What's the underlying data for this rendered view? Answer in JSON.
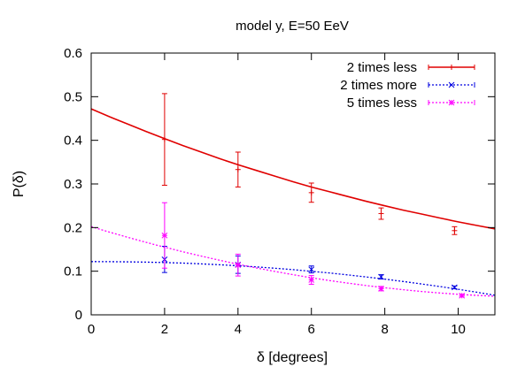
{
  "chart_data": {
    "type": "line",
    "title": "model y, E=50 EeV",
    "xlabel": "δ [degrees]",
    "ylabel": "P(δ)",
    "xlim": [
      0,
      11
    ],
    "ylim": [
      0,
      0.6
    ],
    "x_ticks": [
      {
        "value": 0,
        "label": "0"
      },
      {
        "value": 2,
        "label": "2"
      },
      {
        "value": 4,
        "label": "4"
      },
      {
        "value": 6,
        "label": "6"
      },
      {
        "value": 8,
        "label": "8"
      },
      {
        "value": 10,
        "label": "10"
      }
    ],
    "y_ticks": [
      {
        "value": 0,
        "label": "0"
      },
      {
        "value": 0.1,
        "label": "0.1"
      },
      {
        "value": 0.2,
        "label": "0.2"
      },
      {
        "value": 0.3,
        "label": "0.3"
      },
      {
        "value": 0.4,
        "label": "0.4"
      },
      {
        "value": 0.5,
        "label": "0.5"
      },
      {
        "value": 0.6,
        "label": "0.6"
      }
    ],
    "grid": false,
    "legend_position": "top-right",
    "series": [
      {
        "name": "2 times less",
        "color": "#e00000",
        "marker": "plus",
        "line_style": "solid",
        "points": [
          {
            "x": 2,
            "y": 0.402,
            "err": 0.105
          },
          {
            "x": 4,
            "y": 0.333,
            "err": 0.04
          },
          {
            "x": 6,
            "y": 0.28,
            "err": 0.022
          },
          {
            "x": 7.9,
            "y": 0.232,
            "err": 0.013
          },
          {
            "x": 9.9,
            "y": 0.193,
            "err": 0.009
          }
        ],
        "fit": [
          [
            0,
            0.472
          ],
          [
            0.5,
            0.454
          ],
          [
            1,
            0.437
          ],
          [
            1.5,
            0.42
          ],
          [
            2,
            0.404
          ],
          [
            2.5,
            0.388
          ],
          [
            3,
            0.373
          ],
          [
            3.5,
            0.358
          ],
          [
            4,
            0.344
          ],
          [
            4.5,
            0.331
          ],
          [
            5,
            0.318
          ],
          [
            5.5,
            0.305
          ],
          [
            6,
            0.293
          ],
          [
            6.5,
            0.282
          ],
          [
            7,
            0.271
          ],
          [
            7.5,
            0.26
          ],
          [
            8,
            0.25
          ],
          [
            8.5,
            0.24
          ],
          [
            9,
            0.231
          ],
          [
            9.5,
            0.222
          ],
          [
            10,
            0.213
          ],
          [
            10.5,
            0.205
          ],
          [
            11,
            0.197
          ]
        ]
      },
      {
        "name": "2 times more",
        "color": "#0000e0",
        "marker": "cross",
        "line_style": "dotted",
        "points": [
          {
            "x": 2,
            "y": 0.127,
            "err": 0.03
          },
          {
            "x": 4,
            "y": 0.115,
            "err": 0.02
          },
          {
            "x": 6,
            "y": 0.104,
            "err": 0.008
          },
          {
            "x": 7.9,
            "y": 0.087,
            "err": 0.005
          },
          {
            "x": 9.9,
            "y": 0.063,
            "err": 0.003
          }
        ],
        "fit": [
          [
            0,
            0.122
          ],
          [
            0.5,
            0.1219
          ],
          [
            1,
            0.1215
          ],
          [
            1.5,
            0.1208
          ],
          [
            2,
            0.1198
          ],
          [
            2.5,
            0.1185
          ],
          [
            3,
            0.1168
          ],
          [
            3.5,
            0.1148
          ],
          [
            4,
            0.1125
          ],
          [
            4.5,
            0.1098
          ],
          [
            5,
            0.1068
          ],
          [
            5.5,
            0.1035
          ],
          [
            6,
            0.0998
          ],
          [
            6.5,
            0.0958
          ],
          [
            7,
            0.0915
          ],
          [
            7.5,
            0.0868
          ],
          [
            8,
            0.0818
          ],
          [
            8.5,
            0.0765
          ],
          [
            9,
            0.0708
          ],
          [
            9.5,
            0.0648
          ],
          [
            10,
            0.0585
          ],
          [
            10.5,
            0.0518
          ],
          [
            11,
            0.0448
          ]
        ]
      },
      {
        "name": "5 times less",
        "color": "#ff00ff",
        "marker": "star",
        "line_style": "dotted",
        "points": [
          {
            "x": 2,
            "y": 0.182,
            "err": 0.075
          },
          {
            "x": 4,
            "y": 0.114,
            "err": 0.025
          },
          {
            "x": 6,
            "y": 0.08,
            "err": 0.01
          },
          {
            "x": 7.9,
            "y": 0.06,
            "err": 0.005
          },
          {
            "x": 10.1,
            "y": 0.044,
            "err": 0.003
          }
        ],
        "fit": [
          [
            0,
            0.202
          ],
          [
            0.5,
            0.1895
          ],
          [
            1,
            0.1775
          ],
          [
            1.5,
            0.166
          ],
          [
            2,
            0.155
          ],
          [
            2.5,
            0.1445
          ],
          [
            3,
            0.1345
          ],
          [
            3.5,
            0.125
          ],
          [
            4,
            0.116
          ],
          [
            4.5,
            0.1075
          ],
          [
            5,
            0.0995
          ],
          [
            5.5,
            0.092
          ],
          [
            6,
            0.085
          ],
          [
            6.5,
            0.0785
          ],
          [
            7,
            0.0725
          ],
          [
            7.5,
            0.067
          ],
          [
            8,
            0.062
          ],
          [
            8.5,
            0.0575
          ],
          [
            9,
            0.0535
          ],
          [
            9.5,
            0.05
          ],
          [
            10,
            0.047
          ],
          [
            10.5,
            0.0445
          ],
          [
            11,
            0.0425
          ]
        ]
      }
    ]
  }
}
